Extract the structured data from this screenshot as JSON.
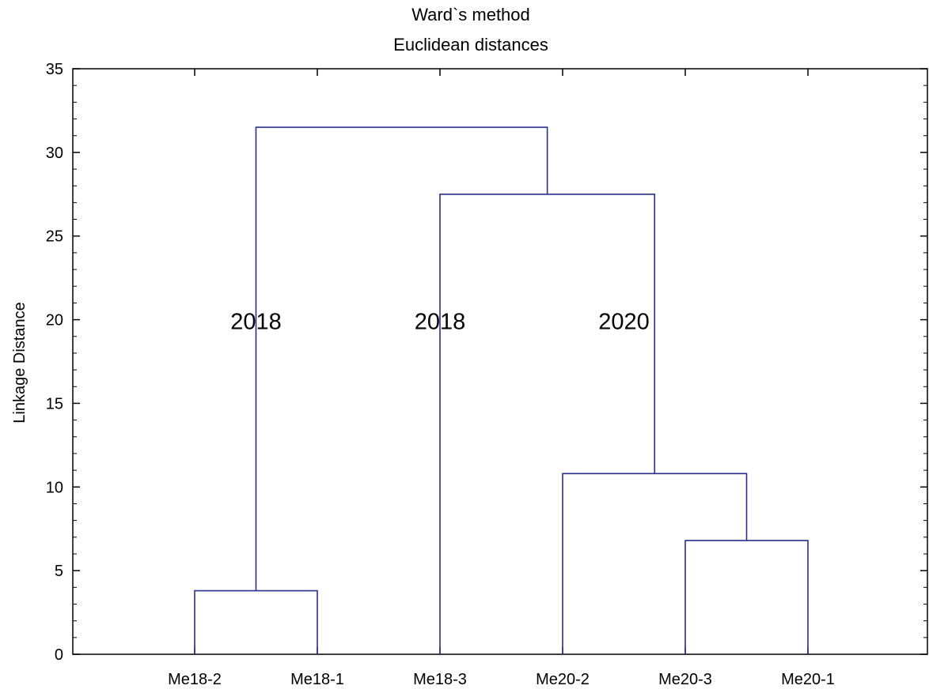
{
  "chart_data": {
    "type": "dendrogram",
    "title": "Ward`s method",
    "subtitle": "Euclidean distances",
    "xlabel": "",
    "ylabel": "Linkage Distance",
    "ylim": [
      0,
      35
    ],
    "yticks": [
      0,
      5,
      10,
      15,
      20,
      25,
      30,
      35
    ],
    "grid": false,
    "leaves": [
      "Me18-2",
      "Me18-1",
      "Me18-3",
      "Me20-2",
      "Me20-3",
      "Me20-1"
    ],
    "merges": [
      {
        "left": "Me18-2",
        "right": "Me18-1",
        "height": 3.8
      },
      {
        "left": "Me20-3",
        "right": "Me20-1",
        "height": 6.8
      },
      {
        "left": "Me20-2",
        "right": [
          "Me20-3",
          "Me20-1"
        ],
        "height": 10.8
      },
      {
        "left": "Me18-3",
        "right": [
          "Me20-2",
          "Me20-3",
          "Me20-1"
        ],
        "height": 27.5
      },
      {
        "left": [
          "Me18-2",
          "Me18-1"
        ],
        "right": [
          "Me18-3",
          "Me20-2",
          "Me20-3",
          "Me20-1"
        ],
        "height": 31.5
      }
    ],
    "annotations": [
      {
        "text": "2018",
        "x_between": [
          "Me18-2",
          "Me18-1"
        ],
        "y": 20
      },
      {
        "text": "2018",
        "x_between": [
          "Me18-3",
          "Me18-3"
        ],
        "y": 20
      },
      {
        "text": "2020",
        "x_between": [
          "Me20-2",
          "Me20-3"
        ],
        "y": 20
      }
    ],
    "colors": {
      "link": "#2a2f8a",
      "axis": "#000000",
      "background": "#ffffff"
    }
  }
}
